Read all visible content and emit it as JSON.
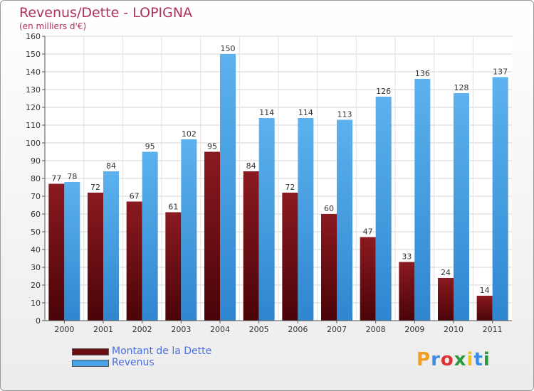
{
  "header": {
    "title": "Revenus/Dette - LOPIGNA",
    "subtitle": "(en milliers d'€)"
  },
  "chart_data": {
    "type": "bar",
    "categories": [
      "2000",
      "2001",
      "2002",
      "2003",
      "2004",
      "2005",
      "2006",
      "2007",
      "2008",
      "2009",
      "2010",
      "2011"
    ],
    "series": [
      {
        "name": "Montant de la Dette",
        "color": "#6b0c10",
        "values": [
          77,
          72,
          67,
          61,
          95,
          84,
          72,
          60,
          47,
          33,
          24,
          14
        ]
      },
      {
        "name": "Revenus",
        "color": "#4aa3e6",
        "values": [
          78,
          84,
          95,
          102,
          150,
          114,
          114,
          113,
          126,
          136,
          128,
          137
        ]
      }
    ],
    "yticks": [
      0,
      10,
      20,
      30,
      40,
      50,
      60,
      70,
      80,
      90,
      100,
      110,
      120,
      130,
      140,
      150,
      160
    ],
    "ylim": [
      0,
      160
    ],
    "grid": true,
    "legend_position": "bottom-left"
  },
  "legend": {
    "items": [
      {
        "label": "Montant de la Dette",
        "color": "#6b0c10"
      },
      {
        "label": "Revenus",
        "color": "#4aa3e6"
      }
    ]
  },
  "logo": {
    "letters": [
      "P",
      "r",
      "o",
      "x",
      "i",
      "t",
      "i"
    ],
    "colors": [
      "#f0a020",
      "#3a8ee6",
      "#e03030",
      "#2a9a3a",
      "#f0c020",
      "#3a8ee6",
      "#2a9a3a"
    ]
  }
}
